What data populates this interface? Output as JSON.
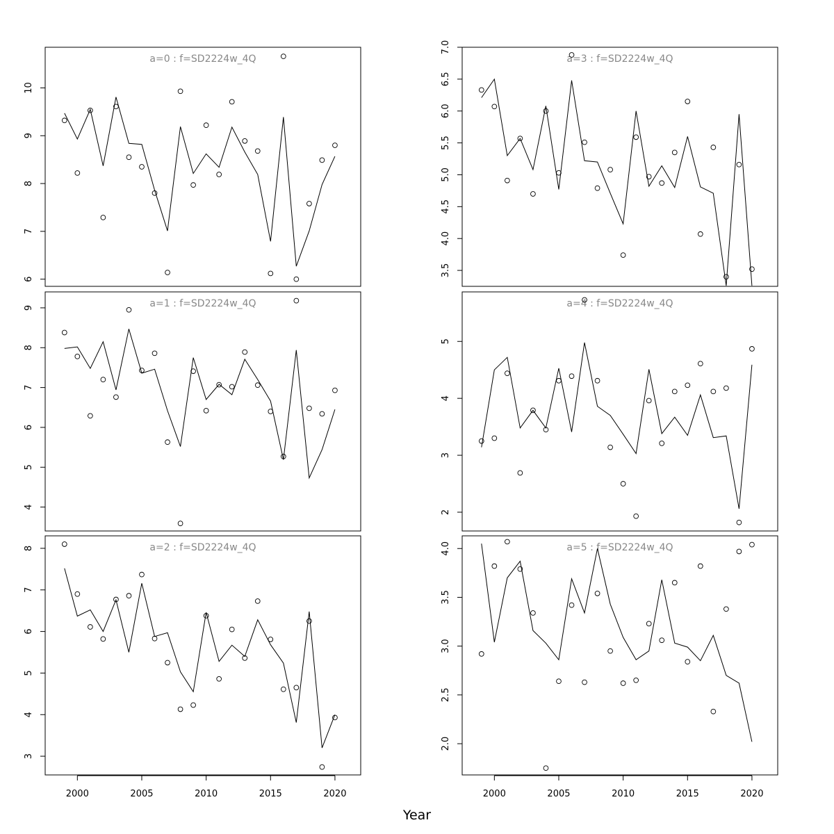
{
  "xlabel": "Year",
  "years": [
    1999,
    2000,
    2001,
    2002,
    2003,
    2004,
    2005,
    2006,
    2007,
    2008,
    2009,
    2010,
    2011,
    2012,
    2013,
    2014,
    2015,
    2016,
    2017,
    2018,
    2019,
    2020
  ],
  "x_ticks": [
    2000,
    2005,
    2010,
    2015,
    2020
  ],
  "chart_data": [
    {
      "type": "scatter",
      "title": "a=0 : f=SD2224w_4Q",
      "xlim": [
        1997.5,
        2022
      ],
      "ylim": [
        5.85,
        10.85
      ],
      "yticks": [
        6,
        7,
        8,
        9,
        10
      ],
      "observed": [
        9.32,
        8.22,
        9.53,
        7.29,
        9.61,
        8.55,
        8.35,
        7.8,
        6.14,
        9.93,
        7.97,
        9.22,
        8.19,
        9.71,
        8.89,
        8.68,
        6.12,
        10.66,
        6.0,
        7.58,
        8.49,
        8.8
      ],
      "fitted": [
        9.47,
        8.93,
        9.55,
        8.37,
        9.81,
        8.84,
        8.82,
        7.86,
        7.01,
        9.19,
        8.21,
        8.62,
        8.34,
        9.18,
        8.66,
        8.19,
        6.79,
        9.39,
        6.27,
        7.01,
        7.98,
        8.57
      ]
    },
    {
      "type": "scatter",
      "title": "a=3 : f=SD2224w_4Q",
      "xlim": [
        1997.5,
        2022
      ],
      "ylim": [
        3.25,
        7.0
      ],
      "yticks": [
        "3.5",
        "4.0",
        "4.5",
        "5.0",
        "5.5",
        "6.0",
        "6.5",
        "7.0"
      ],
      "observed": [
        6.33,
        6.07,
        4.91,
        5.57,
        4.7,
        6.0,
        5.03,
        6.88,
        5.51,
        4.79,
        5.08,
        3.74,
        5.59,
        4.97,
        4.87,
        5.35,
        6.15,
        4.07,
        5.43,
        3.4,
        5.16,
        3.52
      ],
      "fitted": [
        6.21,
        6.5,
        5.3,
        5.57,
        5.08,
        6.08,
        4.77,
        6.48,
        5.22,
        5.2,
        4.71,
        4.23,
        6.0,
        4.82,
        5.14,
        4.8,
        5.6,
        4.81,
        4.71,
        3.26,
        5.95,
        3.26
      ]
    },
    {
      "type": "scatter",
      "title": "a=1 : f=SD2224w_4Q",
      "xlim": [
        1997.5,
        2022
      ],
      "ylim": [
        3.4,
        9.4
      ],
      "yticks": [
        4,
        5,
        6,
        7,
        8,
        9
      ],
      "observed": [
        8.38,
        7.78,
        6.29,
        7.2,
        6.76,
        8.95,
        7.43,
        7.86,
        5.63,
        3.59,
        7.41,
        6.42,
        7.07,
        7.02,
        7.89,
        7.06,
        6.4,
        5.27,
        9.18,
        6.48,
        6.34,
        6.93
      ],
      "fitted": [
        7.98,
        8.02,
        7.48,
        8.15,
        6.94,
        8.47,
        7.36,
        7.46,
        6.42,
        5.52,
        7.75,
        6.7,
        7.08,
        6.82,
        7.71,
        7.2,
        6.66,
        5.19,
        7.94,
        4.73,
        5.44,
        6.45
      ]
    },
    {
      "type": "scatter",
      "title": "a=4 : f=SD2224w_4Q",
      "xlim": [
        1997.5,
        2022
      ],
      "ylim": [
        1.67,
        5.87
      ],
      "yticks": [
        2,
        3,
        4,
        5
      ],
      "observed": [
        3.25,
        3.3,
        4.44,
        2.69,
        3.79,
        3.45,
        4.31,
        4.39,
        5.73,
        4.31,
        3.14,
        2.5,
        1.93,
        3.96,
        3.21,
        4.12,
        4.23,
        4.61,
        4.12,
        4.18,
        1.82,
        4.87
      ],
      "fitted": [
        3.14,
        4.5,
        4.72,
        3.48,
        3.79,
        3.48,
        4.53,
        3.41,
        4.98,
        3.86,
        3.7,
        3.37,
        3.03,
        4.51,
        3.38,
        3.67,
        3.35,
        4.06,
        3.31,
        3.34,
        2.06,
        4.59
      ]
    },
    {
      "type": "scatter",
      "title": "a=2 : f=SD2224w_4Q",
      "xlim": [
        1997.5,
        2022
      ],
      "ylim": [
        2.55,
        8.3
      ],
      "yticks": [
        3,
        4,
        5,
        6,
        7,
        8
      ],
      "observed": [
        8.1,
        6.9,
        6.11,
        5.82,
        6.77,
        6.86,
        7.37,
        5.83,
        5.25,
        4.13,
        4.23,
        6.38,
        4.86,
        6.05,
        5.36,
        6.73,
        5.81,
        4.61,
        4.65,
        6.25,
        2.74,
        3.93
      ],
      "fitted": [
        7.52,
        6.37,
        6.52,
        6.0,
        6.76,
        5.5,
        7.16,
        5.88,
        5.97,
        5.03,
        4.55,
        6.46,
        5.28,
        5.67,
        5.4,
        6.28,
        5.68,
        5.24,
        3.81,
        6.48,
        3.2,
        4.0
      ]
    },
    {
      "type": "scatter",
      "title": "a=5 : f=SD2224w_4Q",
      "xlim": [
        1997.5,
        2022
      ],
      "ylim": [
        1.68,
        4.13
      ],
      "yticks": [
        "2.0",
        "2.5",
        "3.0",
        "3.5",
        "4.0"
      ],
      "observed": [
        2.92,
        3.82,
        4.07,
        3.79,
        3.34,
        1.75,
        2.64,
        3.42,
        2.63,
        3.54,
        2.95,
        2.62,
        2.65,
        3.23,
        3.06,
        3.65,
        2.84,
        3.82,
        2.33,
        3.38,
        3.97,
        4.04
      ],
      "fitted": [
        4.05,
        3.04,
        3.7,
        3.87,
        3.16,
        3.03,
        2.86,
        3.69,
        3.34,
        4.0,
        3.43,
        3.09,
        2.86,
        2.95,
        3.68,
        3.03,
        2.99,
        2.85,
        3.11,
        2.7,
        2.62,
        2.02
      ]
    }
  ]
}
